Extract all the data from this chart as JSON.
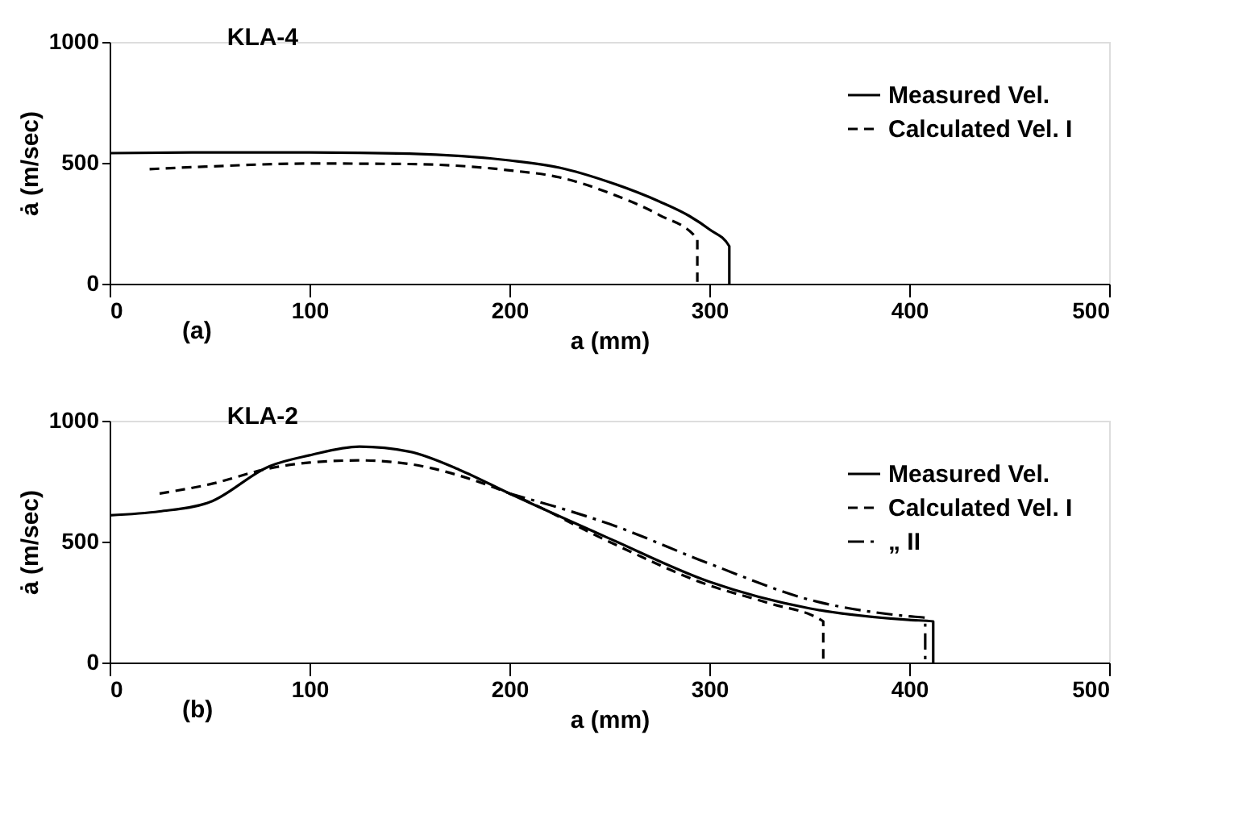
{
  "chart_data": [
    {
      "type": "line",
      "title": "KLA-4",
      "xlabel": "a (mm)",
      "ylabel": "ȧ (m/sec)",
      "annotations": [
        "(a)"
      ],
      "xlim": [
        0,
        500
      ],
      "ylim": [
        0,
        1000
      ],
      "xticks": [
        0,
        100,
        200,
        300,
        400,
        500
      ],
      "yticks": [
        0,
        500,
        1000
      ],
      "grid": false,
      "legend": "top right",
      "marker": "none",
      "series": [
        {
          "name": "Measured Vel.",
          "color": "#000000",
          "line_style": "solid",
          "x": [
            0,
            50,
            100,
            150,
            200,
            225,
            250,
            275,
            290,
            300,
            310,
            310
          ],
          "values": [
            540,
            543,
            543,
            538,
            510,
            480,
            420,
            340,
            280,
            225,
            155,
            0
          ]
        },
        {
          "name": "Calculated Vel. I",
          "color": "#000000",
          "line_style": "dashed",
          "x": [
            20,
            50,
            100,
            150,
            200,
            225,
            250,
            275,
            294,
            294
          ],
          "values": [
            474,
            485,
            497,
            495,
            469,
            440,
            375,
            284,
            185,
            0
          ]
        }
      ]
    },
    {
      "type": "line",
      "title": "KLA-2",
      "xlabel": "a (mm)",
      "ylabel": "ȧ (m/sec)",
      "annotations": [
        "(b)"
      ],
      "xlim": [
        0,
        500
      ],
      "ylim": [
        0,
        1000
      ],
      "xticks": [
        0,
        100,
        200,
        300,
        400,
        500
      ],
      "yticks": [
        0,
        500,
        1000
      ],
      "grid": false,
      "legend": "top right",
      "marker": "none",
      "series": [
        {
          "name": "Measured Vel.",
          "color": "#000000",
          "line_style": "solid",
          "x": [
            0,
            25,
            50,
            80,
            100,
            125,
            150,
            175,
            200,
            250,
            300,
            350,
            400,
            412,
            412
          ],
          "values": [
            609,
            625,
            663,
            812,
            857,
            893,
            872,
            797,
            699,
            513,
            334,
            224,
            176,
            170,
            0
          ]
        },
        {
          "name": "Calculated Vel. I",
          "color": "#000000",
          "line_style": "dashed",
          "x": [
            25,
            50,
            80,
            100,
            125,
            150,
            175,
            200,
            250,
            300,
            330,
            357,
            357
          ],
          "values": [
            699,
            737,
            803,
            827,
            836,
            821,
            773,
            699,
            499,
            319,
            245,
            170,
            0
          ]
        },
        {
          "name": "„ II",
          "color": "#000000",
          "line_style": "dashdot",
          "x": [
            200,
            250,
            300,
            350,
            400,
            408,
            408
          ],
          "values": [
            699,
            573,
            409,
            260,
            191,
            185,
            0
          ]
        }
      ]
    }
  ]
}
